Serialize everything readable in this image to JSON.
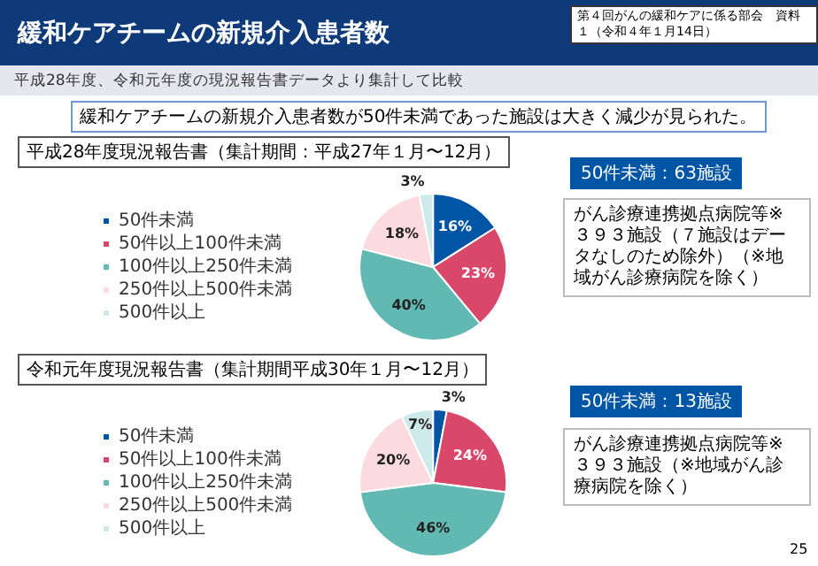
{
  "chart_data": [
    {
      "type": "pie",
      "title": "平成28年度現況報告書（集計期間：平成27年１月〜12月）",
      "categories": [
        "50件未満",
        "50件以上100件未満",
        "100件以上250件未満",
        "250件以上500件未満",
        "500件以上"
      ],
      "values": [
        16,
        23,
        40,
        18,
        3
      ],
      "value_labels": [
        "16%",
        "23%",
        "40%",
        "18%",
        "3%"
      ],
      "colors": [
        "#0055a5",
        "#d9476a",
        "#62b8b2",
        "#fbdbe0",
        "#cdeaea"
      ],
      "legend": "left",
      "annotations": [
        "緩和ケアチームの新規介入患者数",
        "第４回がんの緩和ケアに係る部会　資料１（令和４年１月14日）",
        "平成28年度、令和元年度の現況報告書データより集計して比較",
        "緩和ケアチームの新規介入患者数が50件未満であった施設は大きく減少が見られた。",
        "50件未満：63施設",
        "がん診療連携拠点病院等※　３９３施設（７施設はデータなしのため除外）（※地域がん診療病院を除く）"
      ]
    },
    {
      "type": "pie",
      "title": "令和元年度現況報告書（集計期間平成30年１月〜12月）",
      "categories": [
        "50件未満",
        "50件以上100件未満",
        "100件以上250件未満",
        "250件以上500件未満",
        "500件以上"
      ],
      "values": [
        3,
        24,
        46,
        20,
        7
      ],
      "value_labels": [
        "3%",
        "24%",
        "46%",
        "20%",
        "7%"
      ],
      "colors": [
        "#0055a5",
        "#d9476a",
        "#62b8b2",
        "#fbdbe0",
        "#cdeaea"
      ],
      "legend": "left",
      "annotations": [
        "50件未満：13施設",
        "がん診療連携拠点病院等※　３９３施設（※地域がん診療病院を除く）",
        "25"
      ]
    }
  ]
}
